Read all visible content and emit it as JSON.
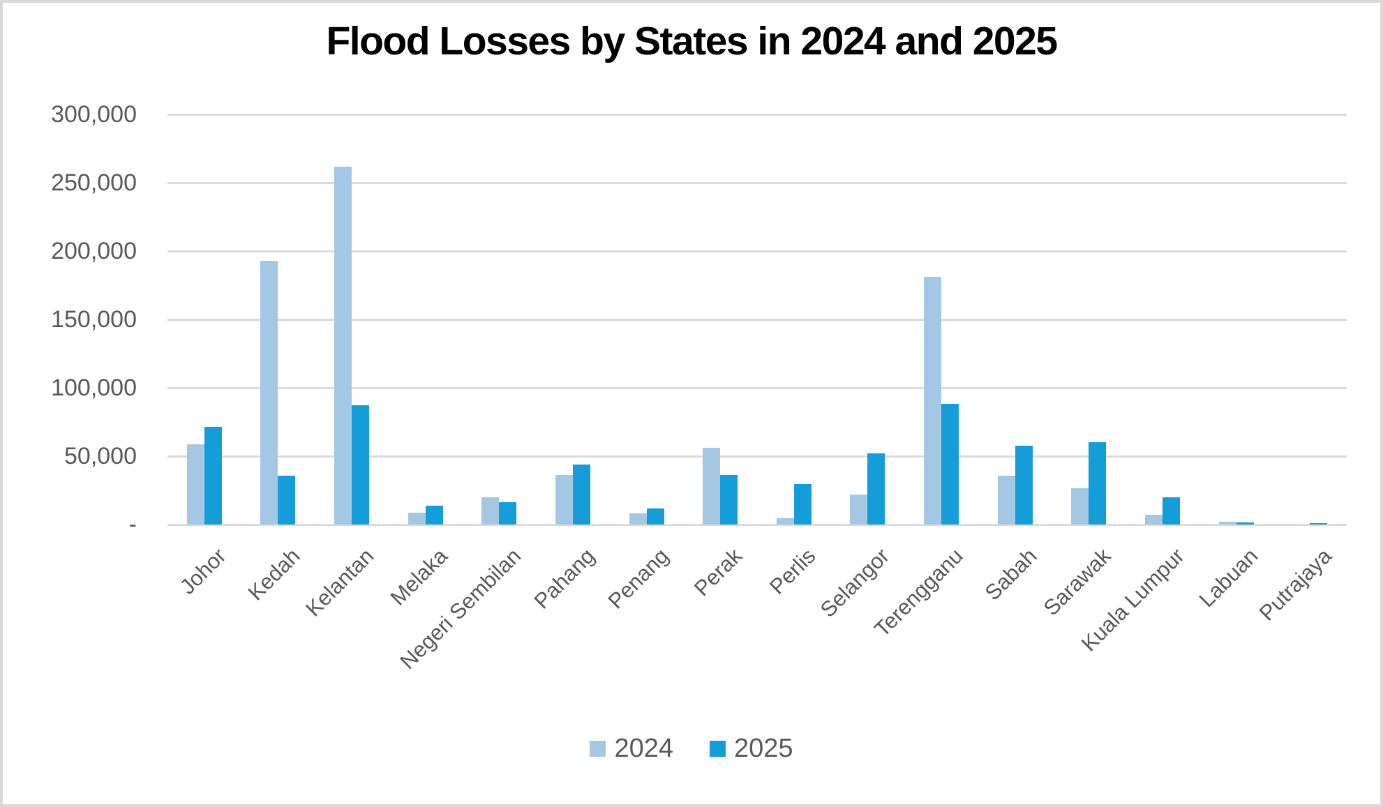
{
  "title": "Flood Losses by States in 2024 and 2025",
  "y_axis": {
    "tick_labels": [
      "-",
      "50,000",
      "100,000",
      "150,000",
      "200,000",
      "250,000",
      "300,000"
    ],
    "min": 0,
    "max": 300000,
    "step": 50000
  },
  "legend": {
    "items": [
      {
        "label": "2024",
        "color": "#a4c7e4"
      },
      {
        "label": "2025",
        "color": "#149dd8"
      }
    ]
  },
  "chart_data": {
    "type": "bar",
    "title": "Flood Losses by States in 2024 and 2025",
    "categories": [
      "Johor",
      "Kedah",
      "Kelantan",
      "Melaka",
      "Negeri Sembilan",
      "Pahang",
      "Penang",
      "Perak",
      "Perlis",
      "Selangor",
      "Terengganu",
      "Sabah",
      "Sarawak",
      "Kuala Lumpur",
      "Labuan",
      "Putrajaya"
    ],
    "series": [
      {
        "name": "2024",
        "color": "#a4c7e4",
        "values": [
          58700,
          192700,
          261700,
          8500,
          19800,
          36400,
          8300,
          56300,
          4700,
          22100,
          181000,
          35900,
          26700,
          7300,
          2100,
          0
        ]
      },
      {
        "name": "2025",
        "color": "#149dd8",
        "values": [
          71300,
          35500,
          87300,
          13600,
          16400,
          43700,
          11500,
          36000,
          29700,
          51900,
          88400,
          57800,
          60400,
          20000,
          1700,
          1100
        ]
      }
    ],
    "xlabel": "",
    "ylabel": "",
    "ylim": [
      0,
      300000
    ],
    "grid": "horizontal",
    "legend_position": "bottom"
  }
}
